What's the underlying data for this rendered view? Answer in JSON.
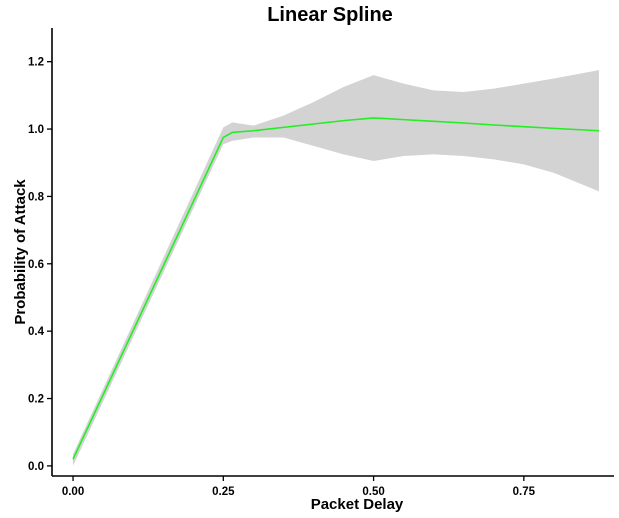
{
  "chart_data": {
    "type": "line",
    "title": "Linear Spline",
    "xlabel": "Packet Delay",
    "ylabel": "Probability of Attack",
    "xlim": [
      -0.035,
      0.9
    ],
    "ylim": [
      -0.03,
      1.3
    ],
    "x_ticks": [
      0.0,
      0.25,
      0.5,
      0.75
    ],
    "x_tick_labels": [
      "0.00",
      "0.25",
      "0.50",
      "0.75"
    ],
    "y_ticks": [
      0.0,
      0.2,
      0.4,
      0.6,
      0.8,
      1.0,
      1.2
    ],
    "y_tick_labels": [
      "0.0",
      "0.2",
      "0.4",
      "0.6",
      "0.8",
      "1.0",
      "1.2"
    ],
    "grid": false,
    "colors": {
      "line": "#22ee22",
      "ribbon": "#d3d3d3"
    },
    "series": [
      {
        "x": [
          0.0,
          0.25,
          0.265,
          0.3,
          0.35,
          0.4,
          0.45,
          0.5,
          0.55,
          0.6,
          0.65,
          0.7,
          0.75,
          0.8,
          0.875
        ],
        "y": [
          0.02,
          0.975,
          0.99,
          0.995,
          1.005,
          1.015,
          1.025,
          1.033,
          1.028,
          1.023,
          1.018,
          1.012,
          1.007,
          1.002,
          0.995
        ],
        "lower": [
          0.0,
          0.955,
          0.965,
          0.975,
          0.975,
          0.95,
          0.925,
          0.905,
          0.92,
          0.925,
          0.92,
          0.91,
          0.895,
          0.87,
          0.815
        ],
        "upper": [
          0.035,
          1.005,
          1.02,
          1.01,
          1.04,
          1.08,
          1.125,
          1.16,
          1.135,
          1.115,
          1.11,
          1.12,
          1.135,
          1.15,
          1.175
        ]
      }
    ]
  }
}
